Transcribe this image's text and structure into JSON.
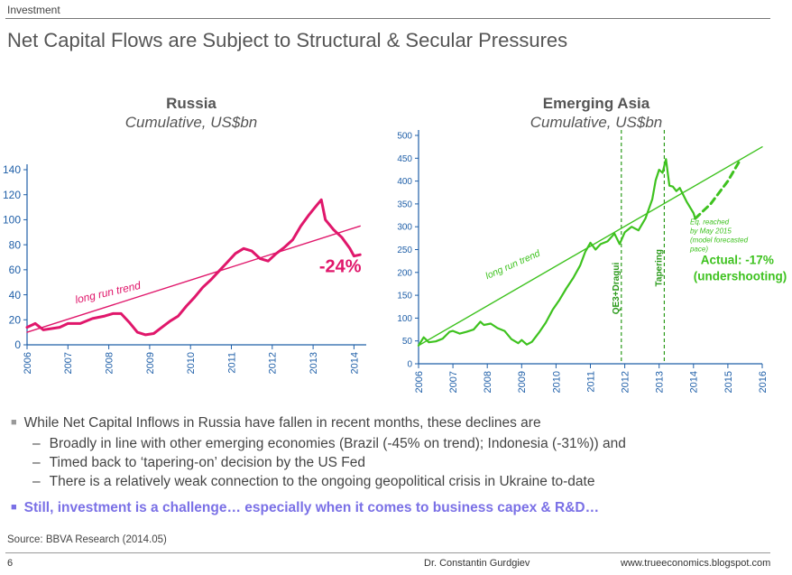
{
  "header": {
    "section": "Investment",
    "title": "Net Capital Flows are Subject to Structural & Secular Pressures"
  },
  "chart_data": [
    {
      "type": "line",
      "title": "Russia",
      "subtitle": "Cumulative, US$bn",
      "y_ticks": [
        "0",
        "20",
        "40",
        "60",
        "80",
        "100",
        "120",
        "140"
      ],
      "x_ticks": [
        "2006",
        "2007",
        "2008",
        "2009",
        "2010",
        "2011",
        "2012",
        "2013",
        "2014"
      ],
      "ylim": [
        0,
        140
      ],
      "xlim": [
        2006,
        2014.3
      ],
      "colors": {
        "axis": "#1f5fa8",
        "series": "#e0176b",
        "trend": "#e0176b"
      },
      "series": [
        {
          "name": "Cumulative net capital flows",
          "style": "solid",
          "x": [
            2006.0,
            2006.2,
            2006.4,
            2006.6,
            2006.8,
            2007.0,
            2007.3,
            2007.6,
            2007.9,
            2008.1,
            2008.3,
            2008.5,
            2008.7,
            2008.9,
            2009.1,
            2009.3,
            2009.5,
            2009.7,
            2009.9,
            2010.1,
            2010.3,
            2010.5,
            2010.7,
            2010.9,
            2011.1,
            2011.3,
            2011.5,
            2011.7,
            2011.9,
            2012.1,
            2012.3,
            2012.5,
            2012.7,
            2012.9,
            2013.0,
            2013.1,
            2013.2,
            2013.3,
            2013.5,
            2013.7,
            2013.9,
            2014.0,
            2014.15
          ],
          "y": [
            14,
            17,
            12,
            13,
            14,
            17,
            17,
            21,
            23,
            25,
            25,
            18,
            10,
            8,
            9,
            14,
            19,
            23,
            31,
            38,
            46,
            52,
            59,
            66,
            73,
            77,
            75,
            69,
            67,
            73,
            78,
            84,
            95,
            104,
            108,
            112,
            116,
            100,
            92,
            86,
            77,
            71,
            72
          ]
        },
        {
          "name": "long run trend",
          "style": "line",
          "x": [
            2006.0,
            2014.15
          ],
          "y": [
            10,
            95
          ]
        }
      ],
      "annotations": [
        {
          "text": "long run trend",
          "x": 2007.2,
          "y": 33
        },
        {
          "text": "-24%",
          "x": 2013.15,
          "y": 58
        }
      ]
    },
    {
      "type": "line",
      "title": "Emerging Asia",
      "subtitle": "Cumulative, US$bn",
      "y_ticks": [
        "0",
        "50",
        "100",
        "150",
        "200",
        "250",
        "300",
        "350",
        "400",
        "450",
        "500"
      ],
      "x_ticks": [
        "2006",
        "2007",
        "2008",
        "2009",
        "2010",
        "2011",
        "2012",
        "2013",
        "2014",
        "2015",
        "2016"
      ],
      "ylim": [
        0,
        500
      ],
      "xlim": [
        2006,
        2016
      ],
      "colors": {
        "axis": "#1f5fa8",
        "series": "#3ec21f",
        "trend": "#3ec21f",
        "vline": "#2a9a1a"
      },
      "series": [
        {
          "name": "Cumulative net capital flows",
          "style": "solid",
          "x": [
            2006.0,
            2006.15,
            2006.3,
            2006.5,
            2006.7,
            2006.9,
            2007.0,
            2007.2,
            2007.4,
            2007.6,
            2007.8,
            2007.9,
            2008.1,
            2008.3,
            2008.5,
            2008.7,
            2008.9,
            2009.0,
            2009.15,
            2009.3,
            2009.5,
            2009.7,
            2009.9,
            2010.1,
            2010.3,
            2010.5,
            2010.7,
            2010.85,
            2011.0,
            2011.15,
            2011.3,
            2011.5,
            2011.7,
            2011.85,
            2012.0,
            2012.2,
            2012.4,
            2012.6,
            2012.8,
            2012.9,
            2013.0,
            2013.1,
            2013.2,
            2013.3,
            2013.4,
            2013.5,
            2013.6,
            2013.8,
            2014.0,
            2014.05
          ],
          "y": [
            40,
            58,
            47,
            49,
            55,
            70,
            72,
            66,
            70,
            75,
            92,
            85,
            88,
            78,
            72,
            54,
            45,
            52,
            42,
            48,
            68,
            90,
            118,
            140,
            165,
            188,
            215,
            245,
            265,
            250,
            262,
            268,
            285,
            262,
            288,
            300,
            292,
            318,
            360,
            402,
            425,
            418,
            448,
            390,
            388,
            378,
            385,
            355,
            330,
            318
          ]
        },
        {
          "name": "Model forecast",
          "style": "dashed",
          "x": [
            2014.05,
            2014.5,
            2015.0,
            2015.35
          ],
          "y": [
            318,
            350,
            400,
            445
          ]
        },
        {
          "name": "long run trend",
          "style": "line",
          "x": [
            2006.0,
            2016.0
          ],
          "y": [
            40,
            475
          ]
        }
      ],
      "vlines": [
        {
          "x": 2011.9,
          "label": "QE3+Dragui"
        },
        {
          "x": 2013.15,
          "label": "Tapering"
        }
      ],
      "annotations": [
        {
          "text": "long run trend",
          "x": 2008.0,
          "y": 185
        },
        {
          "lines": [
            "Eq. reached",
            "by May 2015",
            "(model forecasted",
            "pace)"
          ],
          "x": 2013.9,
          "y": 305
        },
        {
          "lines": [
            "Actual: -17%",
            "(undershooting)"
          ],
          "x": 2014.0,
          "y": 218
        }
      ]
    }
  ],
  "bullets": {
    "main": "While Net Capital Inflows in Russia have fallen in recent months, these declines are",
    "sub": [
      "Broadly in line with other emerging economies (Brazil (-45% on trend); Indonesia (-31%)) and",
      "Timed back to ‘tapering-on’ decision by the US Fed",
      "There is a relatively weak connection to the ongoing geopolitical crisis in Ukraine to-date"
    ],
    "highlight": "Still, investment is a challenge… especially when it comes to business capex & R&D…"
  },
  "source": "Source: BBVA Research (2014.05)",
  "footer": {
    "page": "6",
    "author": "Dr. Constantin Gurdgiev",
    "website": "www.trueeconomics.blogspot.com"
  }
}
